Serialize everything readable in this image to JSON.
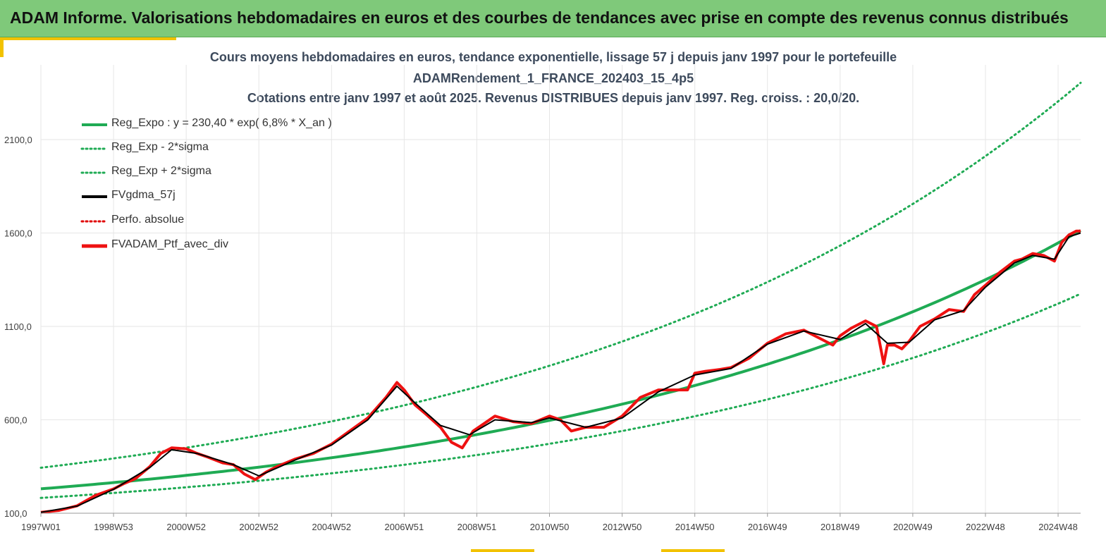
{
  "banner": {
    "title": "ADAM Informe. Valorisations hebdomadaires en euros et des courbes de tendances avec prise en compte des revenus connus distribués"
  },
  "colors": {
    "banner_bg": "#7fc97a",
    "accent": "#f2c200",
    "trend": "#1fab54",
    "band": "#1fab54",
    "smooth": "#000000",
    "perf": "#e00000",
    "portfolio": "#ee1111",
    "grid": "#e6e6e6",
    "text": "#3d4a5c"
  },
  "chart_data": {
    "type": "line",
    "title_lines": [
      "Cours moyens hebdomadaires  en euros, tendance exponentielle, lissage 57 j depuis janv 1997 pour le portefeuille",
      "ADAMRendement_1_FRANCE_202403_15_4p5",
      "Cotations entre janv 1997 et août 2025. Revenus DISTRIBUES depuis janv 1997. Reg. croiss. : 20,0/20."
    ],
    "x_tick_labels": [
      "1997W01",
      "1998W53",
      "2000W52",
      "2002W52",
      "2004W52",
      "2006W51",
      "2008W51",
      "2010W50",
      "2012W50",
      "2014W50",
      "2016W49",
      "2018W49",
      "2020W49",
      "2022W48",
      "2024W48"
    ],
    "x_ticks_years": [
      1997.0,
      1999.0,
      2001.0,
      2003.0,
      2005.0,
      2007.0,
      2009.0,
      2011.0,
      2013.0,
      2015.0,
      2017.0,
      2019.0,
      2021.0,
      2023.0,
      2025.0
    ],
    "x_range": [
      1997.0,
      2025.62
    ],
    "y_tick_labels": [
      "100,0",
      "600,0",
      "1100,0",
      "1600,0",
      "2100,0"
    ],
    "y_ticks": [
      100,
      600,
      1100,
      1600,
      2100
    ],
    "y_range": [
      100,
      2500
    ],
    "grid": true,
    "legend_position": "top-left",
    "legend": [
      {
        "label": "Reg_Expo : y = 230,40 * exp( 6,8% *  X_an )",
        "color": "#1fab54",
        "style": "solid"
      },
      {
        "label": "Reg_Exp - 2*sigma",
        "color": "#1fab54",
        "style": "dotted"
      },
      {
        "label": "Reg_Exp + 2*sigma",
        "color": "#1fab54",
        "style": "dotted"
      },
      {
        "label": "FVgdma_57j",
        "color": "#000000",
        "style": "solid"
      },
      {
        "label": "Perfo. absolue",
        "color": "#e00000",
        "style": "dotted"
      },
      {
        "label": "FVADAM_Ptf_avec_div",
        "color": "#ee1111",
        "style": "solid"
      }
    ],
    "trend": {
      "a": 230.4,
      "rate": 0.068,
      "lower_factor": 0.79,
      "upper_factor": 1.49
    },
    "series": [
      {
        "name": "FVADAM_Ptf_avec_div",
        "x": [
          1997.0,
          1997.5,
          1998.0,
          1998.5,
          1999.0,
          1999.3,
          1999.6,
          2000.0,
          2000.3,
          2000.6,
          2001.0,
          2001.3,
          2001.6,
          2002.0,
          2002.3,
          2002.6,
          2002.9,
          2003.2,
          2003.5,
          2004.0,
          2004.5,
          2005.0,
          2005.5,
          2006.0,
          2006.5,
          2006.8,
          2007.0,
          2007.3,
          2007.6,
          2008.0,
          2008.3,
          2008.6,
          2008.9,
          2009.2,
          2009.5,
          2010.0,
          2010.5,
          2011.0,
          2011.3,
          2011.6,
          2012.0,
          2012.5,
          2013.0,
          2013.5,
          2014.0,
          2014.5,
          2014.8,
          2015.0,
          2015.3,
          2015.7,
          2016.0,
          2016.5,
          2017.0,
          2017.5,
          2018.0,
          2018.4,
          2018.8,
          2019.0,
          2019.3,
          2019.7,
          2020.0,
          2020.2,
          2020.3,
          2020.5,
          2020.7,
          2020.9,
          2021.2,
          2021.6,
          2022.0,
          2022.4,
          2022.7,
          2023.0,
          2023.4,
          2023.8,
          2024.0,
          2024.3,
          2024.6,
          2024.9,
          2025.1,
          2025.3,
          2025.5,
          2025.62
        ],
        "values": [
          105,
          115,
          140,
          195,
          230,
          260,
          285,
          350,
          420,
          450,
          445,
          420,
          400,
          370,
          360,
          310,
          280,
          320,
          350,
          390,
          420,
          470,
          540,
          610,
          720,
          800,
          760,
          680,
          630,
          560,
          480,
          450,
          540,
          580,
          620,
          590,
          580,
          620,
          600,
          540,
          560,
          560,
          620,
          720,
          760,
          760,
          760,
          850,
          860,
          870,
          880,
          930,
          1010,
          1060,
          1080,
          1040,
          1000,
          1050,
          1090,
          1130,
          1100,
          900,
          1000,
          1000,
          980,
          1020,
          1100,
          1140,
          1190,
          1180,
          1270,
          1320,
          1390,
          1450,
          1460,
          1490,
          1480,
          1450,
          1550,
          1590,
          1610,
          1610
        ]
      },
      {
        "name": "FVgdma_57j",
        "x": [
          1997.0,
          1998.0,
          1999.0,
          2000.0,
          2000.6,
          2001.3,
          2002.3,
          2003.0,
          2004.0,
          2005.0,
          2006.0,
          2006.8,
          2007.3,
          2008.0,
          2008.8,
          2009.5,
          2010.5,
          2011.0,
          2012.0,
          2013.0,
          2014.0,
          2015.0,
          2016.0,
          2017.0,
          2018.0,
          2019.0,
          2019.7,
          2020.3,
          2020.9,
          2021.6,
          2022.4,
          2023.0,
          2023.8,
          2024.3,
          2024.9,
          2025.3,
          2025.62
        ],
        "values": [
          105,
          138,
          228,
          345,
          440,
          420,
          360,
          300,
          385,
          465,
          600,
          780,
          690,
          570,
          520,
          600,
          585,
          610,
          560,
          610,
          750,
          840,
          875,
          1005,
          1075,
          1030,
          1115,
          1010,
          1015,
          1135,
          1185,
          1310,
          1440,
          1480,
          1460,
          1580,
          1600
        ]
      }
    ]
  }
}
